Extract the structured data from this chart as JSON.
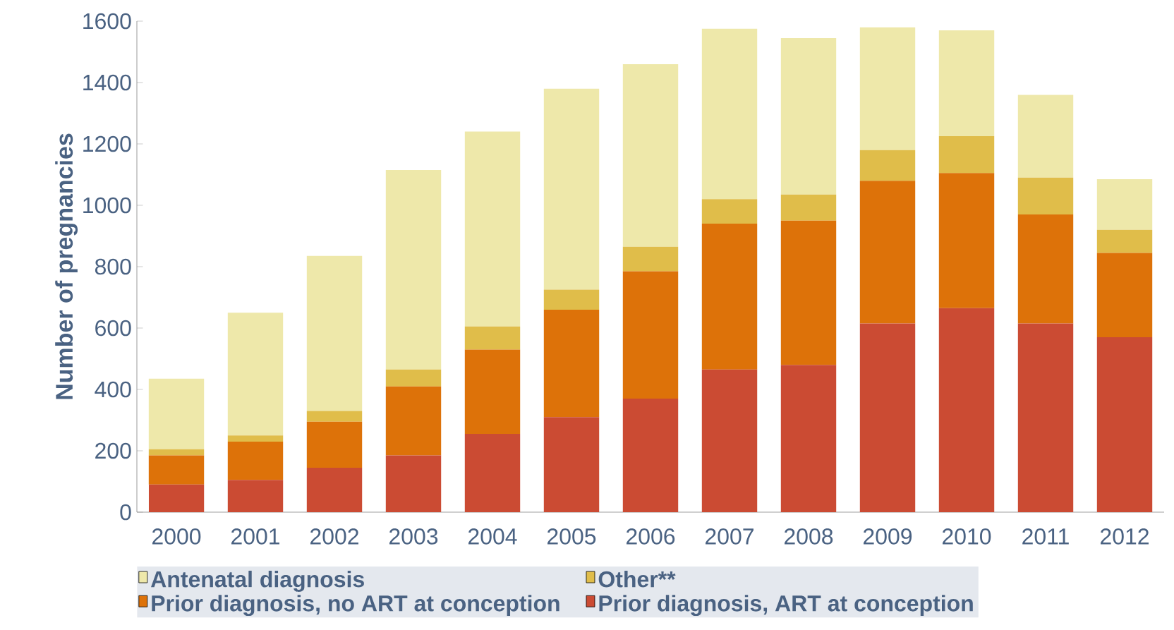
{
  "chart_data": {
    "type": "bar",
    "stacked": true,
    "ylabel": "Number of pregnancies",
    "categories": [
      "2000",
      "2001",
      "2002",
      "2003",
      "2004",
      "2005",
      "2006",
      "2007",
      "2008",
      "2009",
      "2010",
      "2011",
      "2012"
    ],
    "series": [
      {
        "name": "Prior diagnosis, ART at conception",
        "color": "#cb4b33",
        "values": [
          90,
          105,
          145,
          185,
          255,
          310,
          370,
          465,
          480,
          615,
          665,
          615,
          570
        ]
      },
      {
        "name": "Prior diagnosis, no ART at conception",
        "color": "#dd7209",
        "values": [
          95,
          125,
          150,
          225,
          275,
          350,
          415,
          475,
          470,
          465,
          440,
          355,
          275
        ]
      },
      {
        "name": "Other**",
        "color": "#e0bd4a",
        "values": [
          20,
          20,
          35,
          55,
          75,
          65,
          80,
          80,
          85,
          100,
          120,
          120,
          75
        ]
      },
      {
        "name": "Antenatal diagnosis",
        "color": "#eee8aa",
        "values": [
          230,
          400,
          505,
          650,
          635,
          655,
          595,
          555,
          510,
          400,
          345,
          270,
          165
        ]
      }
    ],
    "ylim": [
      0,
      1600
    ],
    "yticks": [
      0,
      200,
      400,
      600,
      800,
      1000,
      1200,
      1400,
      1600
    ],
    "legend": "bottom"
  }
}
